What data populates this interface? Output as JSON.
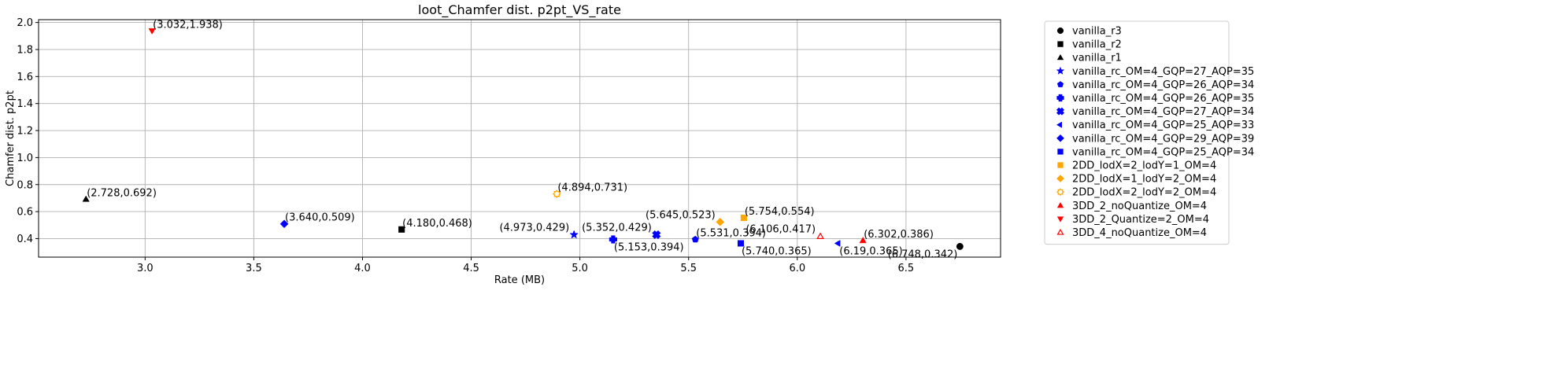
{
  "chart_data": {
    "type": "scatter",
    "title": "loot_Chamfer dist. p2pt_VS_rate",
    "xlabel": "Rate (MB)",
    "ylabel": "Chamfer dist. p2pt",
    "xlim": [
      2.51,
      6.935
    ],
    "ylim": [
      0.263,
      2.021
    ],
    "xticks": [
      3.0,
      3.5,
      4.0,
      4.5,
      5.0,
      5.5,
      6.0,
      6.5
    ],
    "yticks": [
      0.4,
      0.6,
      0.8,
      1.0,
      1.2,
      1.4,
      1.6,
      1.8,
      2.0
    ],
    "grid": true,
    "legend_position": "outside-right",
    "series": [
      {
        "name": "vanilla_r3",
        "color": "#000000",
        "marker": "circle",
        "x": 6.748,
        "y": 0.342,
        "label": "(6.748,0.342)",
        "label_anchor": "below-left"
      },
      {
        "name": "vanilla_r2",
        "color": "#000000",
        "marker": "square",
        "x": 4.18,
        "y": 0.468,
        "label": "(4.180,0.468)",
        "label_anchor": "above-right"
      },
      {
        "name": "vanilla_r1",
        "color": "#000000",
        "marker": "triangle-up",
        "x": 2.728,
        "y": 0.692,
        "label": "(2.728,0.692)",
        "label_anchor": "above-right"
      },
      {
        "name": "vanilla_rc_OM=4_GQP=27_AQP=35",
        "color": "#0000ff",
        "marker": "star",
        "x": 4.973,
        "y": 0.429,
        "label": "(4.973,0.429)",
        "label_anchor": "above-left"
      },
      {
        "name": "vanilla_rc_OM=4_GQP=26_AQP=34",
        "color": "#0000ff",
        "marker": "pentagon",
        "x": 5.531,
        "y": 0.394,
        "label": "(5.531,0.394)",
        "label_anchor": "above-right"
      },
      {
        "name": "vanilla_rc_OM=4_GQP=26_AQP=35",
        "color": "#0000ff",
        "marker": "plus",
        "x": 5.153,
        "y": 0.394,
        "label": "(5.153,0.394)",
        "label_anchor": "below-right"
      },
      {
        "name": "vanilla_rc_OM=4_GQP=27_AQP=34",
        "color": "#0000ff",
        "marker": "x",
        "x": 5.352,
        "y": 0.429,
        "label": "(5.352,0.429)",
        "label_anchor": "above-left"
      },
      {
        "name": "vanilla_rc_OM=4_GQP=25_AQP=33",
        "color": "#0000ff",
        "marker": "triangle-left",
        "x": 6.19,
        "y": 0.365,
        "label": "(6.19,0.365)",
        "label_anchor": "below-right"
      },
      {
        "name": "vanilla_rc_OM=4_GQP=29_AQP=39",
        "color": "#0000ff",
        "marker": "diamond",
        "x": 3.64,
        "y": 0.509,
        "label": "(3.640,0.509)",
        "label_anchor": "above-right"
      },
      {
        "name": "vanilla_rc_OM=4_GQP=25_AQP=34",
        "color": "#0000ff",
        "marker": "square",
        "x": 5.74,
        "y": 0.365,
        "label": "(5.740,0.365)",
        "label_anchor": "below-right"
      },
      {
        "name": "2DD_lodX=2_lodY=1_OM=4",
        "color": "#ffa500",
        "marker": "square",
        "x": 5.754,
        "y": 0.554,
        "label": "(5.754,0.554)",
        "label_anchor": "above-right"
      },
      {
        "name": "2DD_lodX=1_lodY=2_OM=4",
        "color": "#ffa500",
        "marker": "diamond",
        "x": 5.645,
        "y": 0.523,
        "label": "(5.645,0.523)",
        "label_anchor": "above-left"
      },
      {
        "name": "2DD_lodX=2_lodY=2_OM=4",
        "color": "#ffa500",
        "marker": "octagon-open",
        "x": 4.894,
        "y": 0.731,
        "label": "(4.894,0.731)",
        "label_anchor": "above-right"
      },
      {
        "name": "3DD_2_noQuantize_OM=4",
        "color": "#ff0000",
        "marker": "triangle-up",
        "x": 6.302,
        "y": 0.386,
        "label": "(6.302,0.386)",
        "label_anchor": "above-right"
      },
      {
        "name": "3DD_2_Quantize=2_OM=4",
        "color": "#ff0000",
        "marker": "triangle-down",
        "x": 3.032,
        "y": 1.938,
        "label": "(3.032,1.938)",
        "label_anchor": "above-right"
      },
      {
        "name": "3DD_4_noQuantize_OM=4",
        "color": "#ff0000",
        "marker": "triangle-up-open",
        "x": 6.106,
        "y": 0.417,
        "label": "(6.106,0.417)",
        "label_anchor": "above-left"
      }
    ]
  }
}
